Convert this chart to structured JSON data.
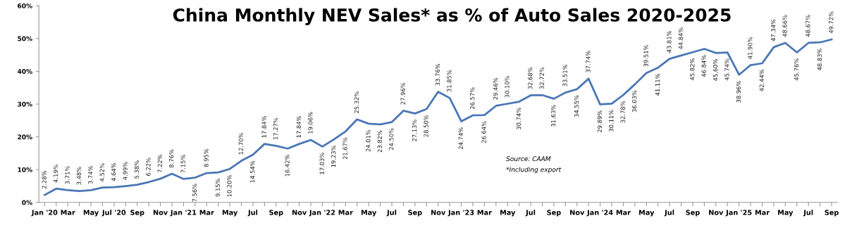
{
  "chart_data": {
    "type": "line",
    "title": "China Monthly NEV Sales* as % of Auto Sales 2020-2025",
    "categories": [
      "Jan '20",
      null,
      "Mar",
      null,
      "May",
      null,
      "Jul '20",
      null,
      "Sep",
      null,
      "Nov",
      null,
      "Jan '21",
      null,
      "Mar",
      null,
      "May",
      null,
      "Jul",
      null,
      "Sep",
      null,
      "Nov",
      null,
      "Jan '22",
      null,
      "Mar",
      null,
      "May",
      null,
      "Jul",
      null,
      "Sep",
      null,
      "Nov",
      null,
      "Jan '23",
      null,
      "Mar",
      null,
      "May",
      null,
      "Jul",
      null,
      "Sep",
      null,
      "Nov",
      null,
      "Jan '24",
      null,
      "Mar",
      null,
      "May",
      null,
      "Jul",
      null,
      "Sep",
      null,
      "Nov",
      null,
      "Jan '25",
      null,
      "Mar",
      null,
      "May",
      null,
      "Jul",
      null,
      "Sep"
    ],
    "series": [
      {
        "color": "#4a76b5",
        "values": [
          2.28,
          4.19,
          3.71,
          3.48,
          3.74,
          4.52,
          4.64,
          4.99,
          5.38,
          6.22,
          7.22,
          8.76,
          7.15,
          7.56,
          8.95,
          9.15,
          10.2,
          12.7,
          14.54,
          17.84,
          17.27,
          16.42,
          17.84,
          19.06,
          17.03,
          19.23,
          21.67,
          25.32,
          24.01,
          23.82,
          24.5,
          27.96,
          27.13,
          28.5,
          33.76,
          31.85,
          24.74,
          26.57,
          26.64,
          29.46,
          30.1,
          30.74,
          32.68,
          32.72,
          31.63,
          33.51,
          34.55,
          37.74,
          29.89,
          30.11,
          32.78,
          36.03,
          39.51,
          41.11,
          43.81,
          44.84,
          45.82,
          46.84,
          45.6,
          45.74,
          38.96,
          41.9,
          42.44,
          47.34,
          48.66,
          45.76,
          48.67,
          48.83,
          49.72
        ],
        "value_labels": [
          "2.28%",
          "4.19%",
          "3.71%",
          "3.48%",
          "3.74%",
          "4.52%",
          "4.64%",
          "4.99%",
          "5.38%",
          "6.22%",
          "7.22%",
          "8.76%",
          "7.15%",
          "7.56%",
          "8.95%",
          "9.15%",
          "10.20%",
          "12.70%",
          "14.54%",
          "17.84%",
          "17.27%",
          "16.42%",
          "17.84%",
          "19.06%",
          "17.03%",
          "19.23%",
          "21.67%",
          "25.32%",
          "24.01%",
          "23.82%",
          "24.50%",
          "27.96%",
          "27.13%",
          "28.50%",
          "33.76%",
          "31.85%",
          "24.74%",
          "26.57%",
          "26.64%",
          "29.46%",
          "30.10%",
          "30.74%",
          "32.68%",
          "32.72%",
          "31.63%",
          "33.51%",
          "34.55%",
          "37.74%",
          "29.89%",
          "30.11%",
          "32.78%",
          "36.03%",
          "39.51%",
          "41.11%",
          "43.81%",
          "44.84%",
          "45.82%",
          "46.84%",
          "45.60%",
          "45.74%",
          "38.96%",
          "41.90%",
          "42.44%",
          "47.34%",
          "48.66%",
          "45.76%",
          "48.67%",
          "48.83%",
          "49.72%"
        ]
      }
    ],
    "ylim": [
      0,
      60
    ],
    "yticks": [
      {
        "value": 0,
        "label": "0%"
      },
      {
        "value": 10,
        "label": "10%"
      },
      {
        "value": 20,
        "label": "20%"
      },
      {
        "value": 30,
        "label": "30%"
      },
      {
        "value": 40,
        "label": "40%"
      },
      {
        "value": 50,
        "label": "50%"
      },
      {
        "value": 60,
        "label": "60%"
      }
    ],
    "grid": false,
    "legend": false,
    "marker": "none",
    "line_style": "solid",
    "annotations": [
      "Source: CAAM",
      "*Including export"
    ]
  }
}
